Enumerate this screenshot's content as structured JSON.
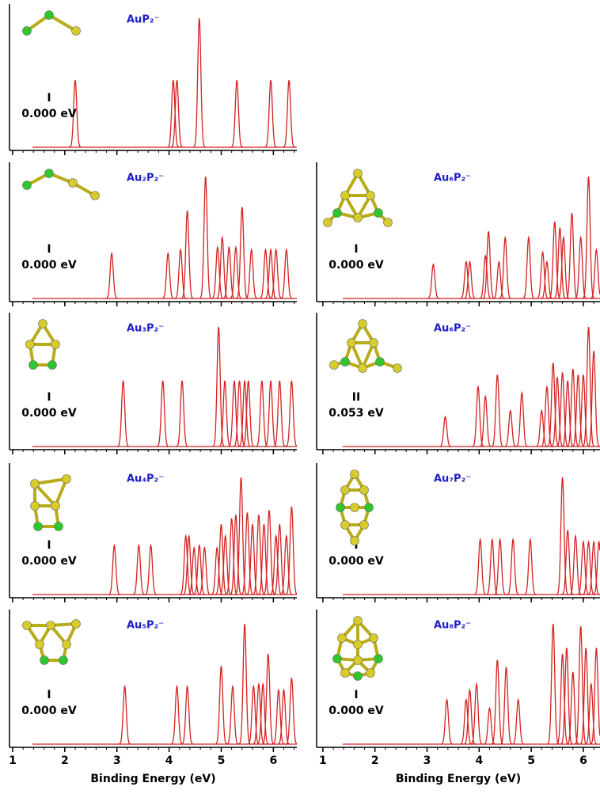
{
  "chart_data": [
    {
      "type": "spectrum",
      "title": "AuP₂⁻",
      "isomer": "I",
      "energy": "0.000 eV",
      "color": "#d42222",
      "xlim": [
        0.94,
        6.45
      ],
      "xticks": [
        1,
        2,
        3,
        4,
        5,
        6
      ],
      "ylim": [
        0,
        1
      ],
      "x": [
        2.2,
        4.08,
        4.15,
        4.58,
        5.3,
        5.95,
        6.3
      ],
      "values": [
        0.52,
        0.52,
        0.52,
        1.0,
        0.52,
        0.52,
        0.52
      ]
    },
    {
      "type": "spectrum",
      "title": "Au₂P₂⁻",
      "isomer": "I",
      "energy": "0.000 eV",
      "color": "#d42222",
      "xlim": [
        0.94,
        6.45
      ],
      "xticks": [
        1,
        2,
        3,
        4,
        5,
        6
      ],
      "ylim": [
        0,
        1
      ],
      "x": [
        2.9,
        3.98,
        4.22,
        4.35,
        4.7,
        4.93,
        5.02,
        5.15,
        5.28,
        5.4,
        5.58,
        5.85,
        5.95,
        6.05,
        6.25
      ],
      "values": [
        0.37,
        0.37,
        0.4,
        0.72,
        1.0,
        0.42,
        0.5,
        0.42,
        0.42,
        0.75,
        0.4,
        0.4,
        0.4,
        0.4,
        0.4
      ]
    },
    {
      "type": "spectrum",
      "title": "Au₃P₂⁻",
      "isomer": "I",
      "energy": "0.000 eV",
      "color": "#d42222",
      "xlim": [
        0.94,
        6.45
      ],
      "xticks": [
        1,
        2,
        3,
        4,
        5,
        6
      ],
      "ylim": [
        0,
        1
      ],
      "x": [
        3.12,
        3.88,
        4.25,
        4.95,
        5.07,
        5.25,
        5.35,
        5.45,
        5.52,
        5.78,
        5.95,
        6.12,
        6.35
      ],
      "values": [
        0.55,
        0.55,
        0.55,
        1.0,
        0.55,
        0.55,
        0.55,
        0.55,
        0.55,
        0.55,
        0.55,
        0.55,
        0.55
      ]
    },
    {
      "type": "spectrum",
      "title": "Au₄P₂⁻",
      "isomer": "I",
      "energy": "0.000 eV",
      "color": "#d42222",
      "xlim": [
        0.94,
        6.45
      ],
      "xticks": [
        1,
        2,
        3,
        4,
        5,
        6
      ],
      "ylim": [
        0,
        1
      ],
      "x": [
        2.95,
        3.42,
        3.65,
        4.32,
        4.38,
        4.48,
        4.58,
        4.68,
        4.92,
        5.0,
        5.08,
        5.2,
        5.28,
        5.38,
        5.5,
        5.6,
        5.72,
        5.82,
        5.92,
        6.05,
        6.12,
        6.25,
        6.35
      ],
      "values": [
        0.42,
        0.42,
        0.42,
        0.5,
        0.5,
        0.4,
        0.42,
        0.4,
        0.4,
        0.6,
        0.5,
        0.65,
        0.68,
        1.0,
        0.7,
        0.6,
        0.68,
        0.6,
        0.72,
        0.5,
        0.6,
        0.5,
        0.75
      ]
    },
    {
      "type": "spectrum",
      "title": "Au₅P₂⁻",
      "isomer": "I",
      "energy": "0.000 eV",
      "color": "#d42222",
      "xlim": [
        0.94,
        6.45
      ],
      "xticks": [
        1,
        2,
        3,
        4,
        5,
        6
      ],
      "ylim": [
        0,
        1
      ],
      "x_label": "Binding Energy (eV)",
      "x": [
        3.15,
        4.15,
        4.35,
        5.0,
        5.22,
        5.45,
        5.62,
        5.72,
        5.8,
        5.9,
        6.1,
        6.2,
        6.35
      ],
      "values": [
        0.48,
        0.48,
        0.48,
        0.65,
        0.48,
        1.0,
        0.48,
        0.5,
        0.5,
        0.75,
        0.45,
        0.45,
        0.55
      ]
    },
    {
      "type": "spectrum",
      "title": "Au₆P₂⁻",
      "isomer": "I",
      "energy": "0.000 eV",
      "color": "#d42222",
      "xlim": [
        0.88,
        6.32
      ],
      "xticks": [
        1,
        2,
        3,
        4,
        5,
        6
      ],
      "ylim": [
        0,
        1
      ],
      "x": [
        3.12,
        3.75,
        3.82,
        4.12,
        4.18,
        4.38,
        4.5,
        4.95,
        5.22,
        5.3,
        5.45,
        5.55,
        5.62,
        5.78,
        5.95,
        6.1,
        6.25
      ],
      "values": [
        0.28,
        0.3,
        0.3,
        0.35,
        0.55,
        0.3,
        0.5,
        0.5,
        0.38,
        0.3,
        0.63,
        0.58,
        0.5,
        0.7,
        0.5,
        1.0,
        0.4
      ]
    },
    {
      "type": "spectrum",
      "title": "Au₆P₂⁻",
      "isomer": "II",
      "energy": "0.053 eV",
      "color": "#d42222",
      "xlim": [
        0.88,
        6.32
      ],
      "xticks": [
        1,
        2,
        3,
        4,
        5,
        6
      ],
      "ylim": [
        0,
        1
      ],
      "x": [
        3.35,
        3.98,
        4.12,
        4.35,
        4.6,
        4.82,
        5.2,
        5.3,
        5.42,
        5.5,
        5.6,
        5.7,
        5.8,
        5.9,
        6.0,
        6.1,
        6.2
      ],
      "values": [
        0.25,
        0.5,
        0.42,
        0.6,
        0.3,
        0.45,
        0.3,
        0.5,
        0.7,
        0.58,
        0.62,
        0.55,
        0.65,
        0.6,
        0.6,
        1.0,
        0.8
      ]
    },
    {
      "type": "spectrum",
      "title": "Au₇P₂⁻",
      "isomer": "I",
      "energy": "0.000 eV",
      "color": "#d42222",
      "xlim": [
        0.88,
        6.32
      ],
      "xticks": [
        1,
        2,
        3,
        4,
        5,
        6
      ],
      "ylim": [
        0,
        1
      ],
      "x": [
        4.02,
        4.25,
        4.4,
        4.65,
        4.98,
        5.6,
        5.7,
        5.85,
        6.0,
        6.1,
        6.2,
        6.3
      ],
      "values": [
        0.47,
        0.47,
        0.47,
        0.47,
        0.47,
        1.0,
        0.55,
        0.5,
        0.45,
        0.45,
        0.45,
        0.45
      ]
    },
    {
      "type": "spectrum",
      "title": "Au₈P₂⁻",
      "isomer": "I",
      "energy": "0.000 eV",
      "color": "#d42222",
      "xlim": [
        0.88,
        6.32
      ],
      "xticks": [
        1,
        2,
        3,
        4,
        5,
        6
      ],
      "ylim": [
        0,
        1
      ],
      "x_label": "Binding Energy (eV)",
      "x": [
        3.38,
        3.75,
        3.82,
        3.95,
        4.2,
        4.35,
        4.52,
        4.75,
        5.42,
        5.6,
        5.68,
        5.8,
        5.95,
        6.05,
        6.15,
        6.25
      ],
      "values": [
        0.37,
        0.37,
        0.45,
        0.5,
        0.3,
        0.7,
        0.64,
        0.37,
        1.0,
        0.75,
        0.8,
        0.6,
        0.98,
        0.8,
        0.5,
        0.8
      ]
    }
  ]
}
